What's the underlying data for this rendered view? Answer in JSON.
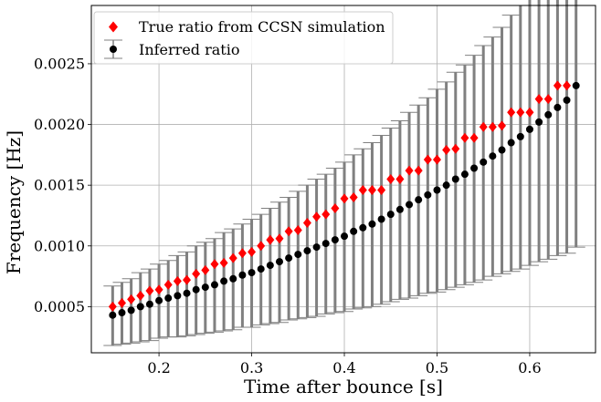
{
  "chart_data": {
    "type": "scatter",
    "xlabel": "Time after bounce [s]",
    "ylabel": "Frequency [Hz]",
    "xlim": [
      0.127,
      0.671
    ],
    "ylim": [
      0.00012,
      0.00298
    ],
    "xticks": [
      0.2,
      0.3,
      0.4,
      0.5,
      0.6
    ],
    "xtick_labels": [
      "0.2",
      "0.3",
      "0.4",
      "0.5",
      "0.6"
    ],
    "yticks": [
      0.0005,
      0.001,
      0.0015,
      0.002,
      0.0025
    ],
    "ytick_labels": [
      "0.0005",
      "0.0010",
      "0.0015",
      "0.0020",
      "0.0025"
    ],
    "grid": true,
    "legend_position": "upper-left",
    "series": [
      {
        "name": "True ratio from CCSN simulation",
        "marker": "diamond",
        "color": "#ff0000",
        "x": [
          0.15,
          0.16,
          0.17,
          0.18,
          0.19,
          0.2,
          0.21,
          0.22,
          0.23,
          0.24,
          0.25,
          0.26,
          0.27,
          0.28,
          0.29,
          0.3,
          0.31,
          0.32,
          0.33,
          0.34,
          0.35,
          0.36,
          0.37,
          0.38,
          0.39,
          0.4,
          0.41,
          0.42,
          0.43,
          0.44,
          0.45,
          0.46,
          0.47,
          0.48,
          0.49,
          0.5,
          0.51,
          0.52,
          0.53,
          0.54,
          0.55,
          0.56,
          0.57,
          0.58,
          0.59,
          0.6,
          0.61,
          0.62,
          0.63,
          0.64
        ],
        "y": [
          0.0005,
          0.00053,
          0.00056,
          0.00059,
          0.00063,
          0.00064,
          0.00068,
          0.00071,
          0.00072,
          0.00077,
          0.0008,
          0.00085,
          0.00086,
          0.0009,
          0.00094,
          0.00095,
          0.001,
          0.00105,
          0.00106,
          0.00112,
          0.00113,
          0.00119,
          0.00124,
          0.00126,
          0.00131,
          0.00139,
          0.0014,
          0.00146,
          0.00146,
          0.00146,
          0.00155,
          0.00155,
          0.00162,
          0.00162,
          0.00171,
          0.00171,
          0.00179,
          0.0018,
          0.00189,
          0.00189,
          0.00198,
          0.00198,
          0.00199,
          0.0021,
          0.0021,
          0.0021,
          0.00221,
          0.00221,
          0.00232,
          0.00232
        ]
      },
      {
        "name": "Inferred ratio",
        "marker": "circle",
        "color": "#000000",
        "errorbar_color": "#808080",
        "x": [
          0.15,
          0.16,
          0.17,
          0.18,
          0.19,
          0.2,
          0.21,
          0.22,
          0.23,
          0.24,
          0.25,
          0.26,
          0.27,
          0.28,
          0.29,
          0.3,
          0.31,
          0.32,
          0.33,
          0.34,
          0.35,
          0.36,
          0.37,
          0.38,
          0.39,
          0.4,
          0.41,
          0.42,
          0.43,
          0.44,
          0.45,
          0.46,
          0.47,
          0.48,
          0.49,
          0.5,
          0.51,
          0.52,
          0.53,
          0.54,
          0.55,
          0.56,
          0.57,
          0.58,
          0.59,
          0.6,
          0.61,
          0.62,
          0.63,
          0.64,
          0.65
        ],
        "y": [
          0.00043,
          0.00045,
          0.00047,
          0.0005,
          0.00052,
          0.00055,
          0.00057,
          0.00059,
          0.00061,
          0.00064,
          0.00066,
          0.00068,
          0.00071,
          0.00073,
          0.00076,
          0.00078,
          0.00081,
          0.00084,
          0.00087,
          0.0009,
          0.00093,
          0.00096,
          0.00099,
          0.00102,
          0.00105,
          0.00108,
          0.00112,
          0.00115,
          0.00118,
          0.00122,
          0.00126,
          0.0013,
          0.00134,
          0.00138,
          0.00142,
          0.00146,
          0.0015,
          0.00155,
          0.00159,
          0.00164,
          0.00169,
          0.00174,
          0.00179,
          0.00185,
          0.0019,
          0.00196,
          0.00202,
          0.00208,
          0.00214,
          0.0022,
          0.00232
        ],
        "yerr_low": [
          0.00025,
          0.00026,
          0.00027,
          0.00029,
          0.0003,
          0.00031,
          0.00032,
          0.00034,
          0.00035,
          0.00037,
          0.00038,
          0.00039,
          0.00041,
          0.00042,
          0.00043,
          0.00045,
          0.00046,
          0.00048,
          0.0005,
          0.00051,
          0.00053,
          0.00055,
          0.00057,
          0.00058,
          0.0006,
          0.00062,
          0.00064,
          0.00066,
          0.00068,
          0.0007,
          0.00072,
          0.00074,
          0.00077,
          0.00079,
          0.00081,
          0.00084,
          0.00086,
          0.00089,
          0.00091,
          0.00094,
          0.00097,
          0.00099,
          0.00102,
          0.00106,
          0.00109,
          0.00112,
          0.00115,
          0.00119,
          0.00122,
          0.00126,
          0.00133
        ],
        "yerr_high": [
          0.00024,
          0.00025,
          0.00026,
          0.00028,
          0.00029,
          0.0003,
          0.00031,
          0.00033,
          0.00034,
          0.00036,
          0.00037,
          0.00038,
          0.0004,
          0.00041,
          0.00042,
          0.00044,
          0.00045,
          0.00047,
          0.00049,
          0.0005,
          0.00052,
          0.00054,
          0.00056,
          0.00057,
          0.00059,
          0.00061,
          0.00063,
          0.00065,
          0.00067,
          0.00069,
          0.00071,
          0.00073,
          0.00076,
          0.00078,
          0.0008,
          0.00083,
          0.00085,
          0.00088,
          0.0009,
          0.00093,
          0.00096,
          0.00098,
          0.00101,
          0.00105,
          0.00108,
          0.00111,
          0.00114,
          0.00118,
          0.00121,
          0.00125,
          0.00132
        ]
      }
    ]
  }
}
